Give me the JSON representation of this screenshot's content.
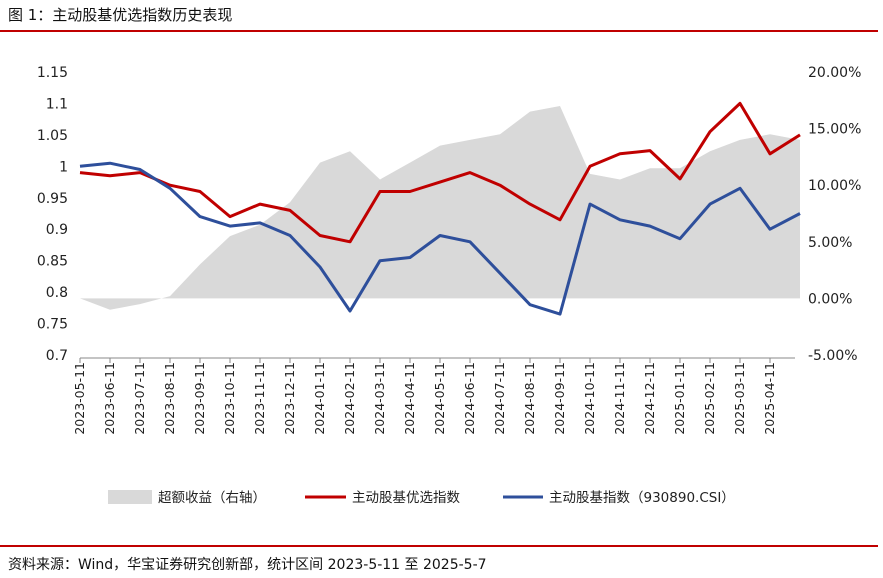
{
  "header": {
    "title": "图 1：主动股基优选指数历史表现"
  },
  "footer": {
    "source": "资料来源：Wind，华宝证券研究创新部，统计区间 2023-5-11 至 2025-5-7"
  },
  "colors": {
    "accent": "#c00000",
    "area": "#d9d9d9",
    "blue": "#2e4f9b",
    "red": "#c00000"
  },
  "chart_data": {
    "type": "line",
    "title": "主动股基优选指数历史表现",
    "x": [
      "2023-05-11",
      "2023-06-11",
      "2023-07-11",
      "2023-08-11",
      "2023-09-11",
      "2023-10-11",
      "2023-11-11",
      "2023-12-11",
      "2024-01-11",
      "2024-02-11",
      "2024-03-11",
      "2024-04-11",
      "2024-05-11",
      "2024-06-11",
      "2024-07-11",
      "2024-08-11",
      "2024-09-11",
      "2024-10-11",
      "2024-11-11",
      "2024-12-11",
      "2025-01-11",
      "2025-02-11",
      "2025-03-11",
      "2025-04-11",
      "2025-05-07"
    ],
    "ylim_left": [
      0.7,
      1.15
    ],
    "yticks_left": [
      "1.15",
      "1.1",
      "1.05",
      "1",
      "0.95",
      "0.9",
      "0.85",
      "0.8",
      "0.75",
      "0.7"
    ],
    "ylim_right": [
      -5,
      20
    ],
    "yticks_right": [
      "20.00%",
      "15.00%",
      "10.00%",
      "5.00%",
      "0.00%",
      "-5.00%"
    ],
    "series": [
      {
        "name": "超额收益（右轴）",
        "type": "area",
        "axis": "right",
        "values": [
          0.0,
          -1.0,
          -0.5,
          0.2,
          3.0,
          5.5,
          6.5,
          8.5,
          12.0,
          13.0,
          10.5,
          12.0,
          13.5,
          14.0,
          14.5,
          16.5,
          17.0,
          11.0,
          10.5,
          11.5,
          11.5,
          13.0,
          14.0,
          14.5,
          14.0
        ]
      },
      {
        "name": "主动股基优选指数",
        "type": "line",
        "axis": "left",
        "values": [
          0.99,
          0.985,
          0.99,
          0.97,
          0.96,
          0.92,
          0.94,
          0.93,
          0.89,
          0.88,
          0.96,
          0.96,
          0.975,
          0.99,
          0.97,
          0.94,
          0.915,
          1.0,
          1.02,
          1.025,
          0.98,
          1.055,
          1.1,
          1.02,
          1.05
        ]
      },
      {
        "name": "主动股基指数（930890.CSI）",
        "type": "line",
        "axis": "left",
        "values": [
          1.0,
          1.005,
          0.995,
          0.965,
          0.92,
          0.905,
          0.91,
          0.89,
          0.84,
          0.77,
          0.85,
          0.855,
          0.89,
          0.88,
          0.83,
          0.78,
          0.765,
          0.94,
          0.915,
          0.905,
          0.885,
          0.94,
          0.965,
          0.9,
          0.925
        ]
      }
    ],
    "legend": {
      "position": "bottom",
      "entries": [
        "超额收益（右轴）",
        "主动股基优选指数",
        "主动股基指数（930890.CSI）"
      ]
    },
    "grid": false
  }
}
